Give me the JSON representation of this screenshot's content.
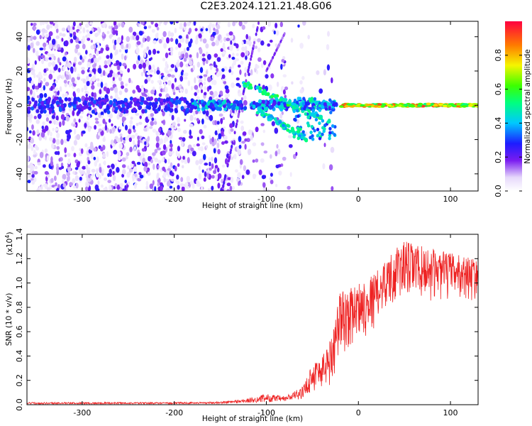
{
  "title": "C2E3.2024.121.21.48.G06",
  "chart_data": [
    {
      "type": "heatmap",
      "xlabel": "Height of straight line (km)",
      "ylabel": "Frequency (Hz)",
      "xlim": [
        -360,
        130
      ],
      "ylim": [
        -50,
        49
      ],
      "x_ticks": [
        -300,
        -200,
        -100,
        0,
        100
      ],
      "y_ticks": [
        -40,
        -20,
        0,
        20,
        40
      ],
      "x_tick_labels": [
        "-300",
        "-200",
        "-100",
        "0",
        "100"
      ],
      "y_tick_labels": [
        "-40",
        "-20",
        "0",
        "20",
        "40"
      ],
      "colorbar": {
        "label": "Normalized spectral amplitude",
        "range": [
          0,
          1
        ],
        "ticks": [
          0.0,
          0.2,
          0.4,
          0.6,
          0.8
        ],
        "tick_labels": [
          "0.0",
          "0.2",
          "0.4",
          "0.6",
          "0.8"
        ],
        "colormap": "rainbow"
      },
      "features": [
        {
          "name": "background speckle",
          "x_range": [
            -360,
            -40
          ],
          "y_range": [
            -50,
            49
          ],
          "amplitude": [
            0.0,
            0.3
          ]
        },
        {
          "name": "central band",
          "x_range": [
            -360,
            130
          ],
          "center_freq": 0,
          "amplitude": [
            0.2,
            0.95
          ]
        },
        {
          "name": "upper branch",
          "from": [
            -125,
            13
          ],
          "to": [
            -40,
            -7
          ],
          "amplitude": 0.5
        },
        {
          "name": "lower branch",
          "from": [
            -110,
            -3
          ],
          "to": [
            -55,
            -20
          ],
          "amplitude": 0.45
        }
      ]
    },
    {
      "type": "line",
      "xlabel": "Height of straight line (km)",
      "ylabel": "SNR (10 * v/v)",
      "y_multiplier": "(x10",
      "y_multiplier_exp": "4",
      "y_multiplier_close": ")",
      "xlim": [
        -360,
        130
      ],
      "ylim": [
        0,
        1.4
      ],
      "x_ticks": [
        -300,
        -200,
        -100,
        0,
        100
      ],
      "x_tick_labels": [
        "-300",
        "-200",
        "-100",
        "0",
        "100"
      ],
      "y_ticks": [
        0.0,
        0.2,
        0.4,
        0.6,
        0.8,
        1.0,
        1.2,
        1.4
      ],
      "y_tick_labels": [
        "0.0",
        "0.2",
        "0.4",
        "0.6",
        "0.8",
        "1.0",
        "1.2",
        "1.4"
      ],
      "color": "#ee2222",
      "envelope": [
        {
          "x": -360,
          "base": 0.005,
          "peak": 0.02
        },
        {
          "x": -200,
          "base": 0.006,
          "peak": 0.02
        },
        {
          "x": -150,
          "base": 0.008,
          "peak": 0.025
        },
        {
          "x": -120,
          "base": 0.015,
          "peak": 0.05
        },
        {
          "x": -100,
          "base": 0.02,
          "peak": 0.09
        },
        {
          "x": -80,
          "base": 0.025,
          "peak": 0.07
        },
        {
          "x": -60,
          "base": 0.05,
          "peak": 0.15
        },
        {
          "x": -50,
          "base": 0.1,
          "peak": 0.35
        },
        {
          "x": -40,
          "base": 0.1,
          "peak": 0.4
        },
        {
          "x": -30,
          "base": 0.15,
          "peak": 0.55
        },
        {
          "x": -20,
          "base": 0.35,
          "peak": 0.95
        },
        {
          "x": -10,
          "base": 0.45,
          "peak": 0.95
        },
        {
          "x": 0,
          "base": 0.55,
          "peak": 1.0
        },
        {
          "x": 10,
          "base": 0.55,
          "peak": 1.05
        },
        {
          "x": 20,
          "base": 0.65,
          "peak": 1.1
        },
        {
          "x": 30,
          "base": 0.8,
          "peak": 1.2
        },
        {
          "x": 50,
          "base": 0.85,
          "peak": 1.35
        },
        {
          "x": 70,
          "base": 0.85,
          "peak": 1.3
        },
        {
          "x": 100,
          "base": 0.85,
          "peak": 1.25
        },
        {
          "x": 130,
          "base": 0.85,
          "peak": 1.2
        }
      ]
    }
  ]
}
